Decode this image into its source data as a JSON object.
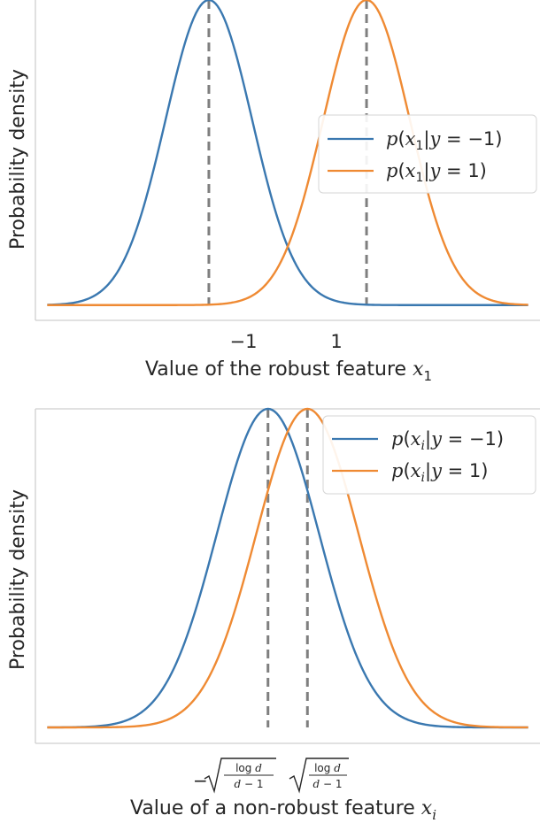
{
  "chart_data": [
    {
      "type": "line",
      "xlabel": "Value of the robust feature x₁",
      "ylabel": "Probability density",
      "xlim": [
        -3.2,
        3.2
      ],
      "ylim": [
        -0.05,
        1.0
      ],
      "xtick_labels": [
        "−1",
        "1"
      ],
      "xticks": [
        -1,
        1
      ],
      "grid": false,
      "legend_position": "center-right",
      "sigma": 0.55,
      "vlines": [
        -1,
        1
      ],
      "series": [
        {
          "name": "p(x₁|y = −1)",
          "mean": -1,
          "color": "#3a78b0"
        },
        {
          "name": "p(x₁|y = 1)",
          "mean": 1,
          "color": "#ef8a33"
        }
      ]
    },
    {
      "type": "line",
      "xlabel": "Value of a non-robust feature xᵢ",
      "ylabel": "Probability density",
      "xlim": [
        -3.2,
        3.2
      ],
      "ylim": [
        -0.05,
        1.0
      ],
      "xtick_labels": [
        "−√(log d / (d−1))",
        "√(log d / (d−1))"
      ],
      "xticks": [
        -0.25,
        0.25
      ],
      "grid": false,
      "legend_position": "top-right",
      "sigma": 0.65,
      "vlines": [
        -0.25,
        0.25
      ],
      "series": [
        {
          "name": "p(xᵢ|y = −1)",
          "mean": -0.25,
          "color": "#3a78b0"
        },
        {
          "name": "p(xᵢ|y = 1)",
          "mean": 0.25,
          "color": "#ef8a33"
        }
      ]
    }
  ]
}
